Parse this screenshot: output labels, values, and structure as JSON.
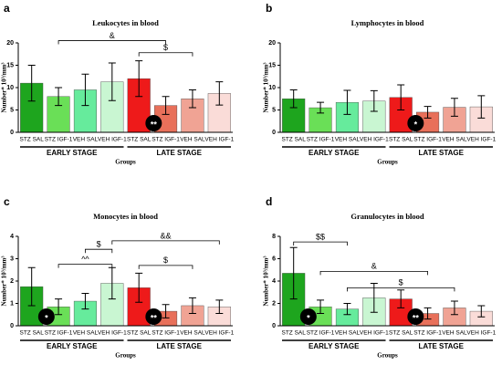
{
  "chart_data": [
    {
      "type": "bar",
      "label": "a",
      "title": "Leukocytes in blood",
      "ylabel": "Number* 10³/mm³",
      "xlabel": "Groups",
      "categories": [
        "STZ SAL",
        "STZ IGF-1",
        "VEH SAL",
        "VEH IGF-1",
        "STZ SAL",
        "STZ IGF-1",
        "VEH SAL",
        "VEH IGF-1"
      ],
      "groups": [
        "EARLY STAGE",
        "LATE STAGE"
      ],
      "values": [
        11,
        8,
        9.5,
        11.3,
        12,
        6,
        7.5,
        8.7
      ],
      "errors": [
        4,
        2,
        3.5,
        4.2,
        4,
        2,
        2,
        2.6
      ],
      "colors": [
        "#1ea51e",
        "#6adf57",
        "#66eb9c",
        "#c9f6d2",
        "#ee1a1a",
        "#e8705a",
        "#f0a394",
        "#fadcd8"
      ],
      "ylim": [
        0,
        20
      ],
      "yticks": [
        0,
        5,
        10,
        15,
        20
      ],
      "brackets": [
        {
          "text": "&",
          "from": 1,
          "to": 5,
          "y": 20.5
        },
        {
          "text": "$",
          "from": 4,
          "to": 6,
          "y": 17.8
        }
      ],
      "stars": [
        {
          "text": "**",
          "index": 5
        }
      ]
    },
    {
      "type": "bar",
      "label": "b",
      "title": "Lymphocytes in blood",
      "ylabel": "Number* 10³/mm³",
      "xlabel": "Groups",
      "categories": [
        "STZ SAL",
        "STZ IGF-1",
        "VEH SAL",
        "VEH IGF-1",
        "STZ SAL",
        "STZ IGF-1",
        "VEH SAL",
        "VEH IGF-1"
      ],
      "groups": [
        "EARLY STAGE",
        "LATE STAGE"
      ],
      "values": [
        7.5,
        5.5,
        6.7,
        7,
        7.8,
        4.5,
        5.6,
        5.7
      ],
      "errors": [
        2,
        1.2,
        2.7,
        2.3,
        2.8,
        1.3,
        2,
        2.5
      ],
      "colors": [
        "#1ea51e",
        "#6adf57",
        "#66eb9c",
        "#c9f6d2",
        "#ee1a1a",
        "#e8705a",
        "#f0a394",
        "#fadcd8"
      ],
      "ylim": [
        0,
        20
      ],
      "yticks": [
        0,
        5,
        10,
        15,
        20
      ],
      "brackets": [],
      "stars": [
        {
          "text": "*",
          "index": 5
        }
      ]
    },
    {
      "type": "bar",
      "label": "c",
      "title": "Monocytes in blood",
      "ylabel": "Number* 10³/mm³",
      "xlabel": "Groups",
      "categories": [
        "STZ SAL",
        "STZ IGF-1",
        "VEH SAL",
        "VEH IGF-1",
        "STZ SAL",
        "STZ IGF-1",
        "VEH SAL",
        "VEH IGF-1"
      ],
      "groups": [
        "EARLY STAGE",
        "LATE STAGE"
      ],
      "values": [
        1.75,
        0.85,
        1.1,
        1.9,
        1.7,
        0.65,
        0.9,
        0.85
      ],
      "errors": [
        0.85,
        0.35,
        0.35,
        0.7,
        0.65,
        0.3,
        0.35,
        0.3
      ],
      "colors": [
        "#1ea51e",
        "#6adf57",
        "#66eb9c",
        "#c9f6d2",
        "#ee1a1a",
        "#e8705a",
        "#f0a394",
        "#fadcd8"
      ],
      "ylim": [
        0,
        4
      ],
      "yticks": [
        0,
        1,
        2,
        3,
        4
      ],
      "brackets": [
        {
          "text": "$",
          "from": 2,
          "to": 3,
          "y": 3.42
        },
        {
          "text": "^^",
          "from": 1,
          "to": 3,
          "y": 2.75
        },
        {
          "text": "&&",
          "from": 3,
          "to": 7,
          "y": 3.8
        },
        {
          "text": "$",
          "from": 4,
          "to": 6,
          "y": 2.7
        }
      ],
      "stars": [
        {
          "text": "*",
          "index": 1
        },
        {
          "text": "**",
          "index": 5
        }
      ]
    },
    {
      "type": "bar",
      "label": "d",
      "title": "Granulocytes in blood",
      "ylabel": "Number* 10³/mm³",
      "xlabel": "Groups",
      "categories": [
        "STZ SAL",
        "STZ IGF-1",
        "VEH SAL",
        "VEH IGF-1",
        "STZ SAL",
        "STZ IGF-1",
        "VEH SAL",
        "VEH IGF-1"
      ],
      "groups": [
        "EARLY STAGE",
        "LATE STAGE"
      ],
      "values": [
        4.7,
        1.7,
        1.5,
        2.5,
        2.4,
        1.1,
        1.6,
        1.3
      ],
      "errors": [
        2.3,
        0.6,
        0.5,
        1.3,
        0.8,
        0.5,
        0.6,
        0.5
      ],
      "colors": [
        "#1ea51e",
        "#6adf57",
        "#66eb9c",
        "#c9f6d2",
        "#ee1a1a",
        "#e8705a",
        "#f0a394",
        "#fadcd8"
      ],
      "ylim": [
        0,
        8
      ],
      "yticks": [
        0,
        2,
        4,
        6,
        8
      ],
      "brackets": [
        {
          "text": "$$",
          "from": 0,
          "to": 2,
          "y": 7.5
        },
        {
          "text": "&",
          "from": 1,
          "to": 5,
          "y": 4.87
        },
        {
          "text": "$",
          "from": 2,
          "to": 6,
          "y": 3.4
        }
      ],
      "stars": [
        {
          "text": "*",
          "index": 1
        },
        {
          "text": "**",
          "index": 5
        }
      ]
    }
  ]
}
